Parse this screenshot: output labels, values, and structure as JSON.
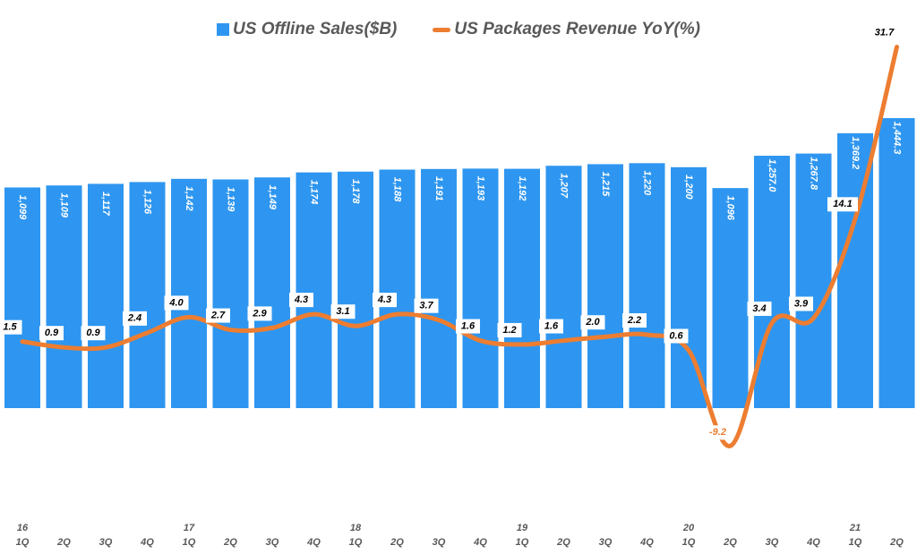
{
  "colors": {
    "bar": "#2e96f0",
    "line": "#ed7d31"
  },
  "chart_data": {
    "type": "bar+line",
    "categories": [
      "16 1Q",
      "2Q",
      "3Q",
      "4Q",
      "17 1Q",
      "2Q",
      "3Q",
      "4Q",
      "18 1Q",
      "2Q",
      "3Q",
      "4Q",
      "19 1Q",
      "2Q",
      "3Q",
      "4Q",
      "20 1Q",
      "2Q",
      "3Q",
      "4Q",
      "21 1Q",
      "2Q"
    ],
    "tick_top": [
      "16",
      "",
      "",
      "",
      "17",
      "",
      "",
      "",
      "18",
      "",
      "",
      "",
      "19",
      "",
      "",
      "",
      "20",
      "",
      "",
      "",
      "21",
      ""
    ],
    "tick_bottom": [
      "1Q",
      "2Q",
      "3Q",
      "4Q",
      "1Q",
      "2Q",
      "3Q",
      "4Q",
      "1Q",
      "2Q",
      "3Q",
      "4Q",
      "1Q",
      "2Q",
      "3Q",
      "4Q",
      "1Q",
      "2Q",
      "3Q",
      "4Q",
      "1Q",
      "2Q"
    ],
    "series": [
      {
        "name": "US Offline Sales($B)",
        "type": "bar",
        "values": [
          1099,
          1109,
          1117,
          1126,
          1142,
          1139,
          1149,
          1174,
          1178,
          1188,
          1191,
          1193,
          1192,
          1207,
          1215,
          1220,
          1200,
          1096,
          1257.0,
          1267.8,
          1369.2,
          1444.3
        ],
        "labels": [
          "1,099",
          "1,109",
          "1,117",
          "1,126",
          "1,142",
          "1,139",
          "1,149",
          "1,174",
          "1,178",
          "1,188",
          "1,191",
          "1,193",
          "1,192",
          "1,207",
          "1,215",
          "1,220",
          "1,200",
          "1,096",
          "1,257.0",
          "1,267.8",
          "1,369.2",
          "1,444.3"
        ]
      },
      {
        "name": "US Packages Revenue YoY(%)",
        "type": "line",
        "values": [
          1.5,
          0.9,
          0.9,
          2.4,
          4.0,
          2.7,
          2.9,
          4.3,
          3.1,
          4.3,
          3.7,
          1.6,
          1.2,
          1.6,
          2.0,
          2.2,
          0.6,
          -9.2,
          3.4,
          3.9,
          14.1,
          31.7
        ],
        "labels": [
          "1.5",
          "0.9",
          "0.9",
          "2.4",
          "4.0",
          "2.7",
          "2.9",
          "4.3",
          "3.1",
          "4.3",
          "3.7",
          "1.6",
          "1.2",
          "1.6",
          "2.0",
          "2.2",
          "0.6",
          "-9.2",
          "3.4",
          "3.9",
          "14.1",
          "31.7"
        ]
      }
    ],
    "legend_position": "top-center"
  }
}
